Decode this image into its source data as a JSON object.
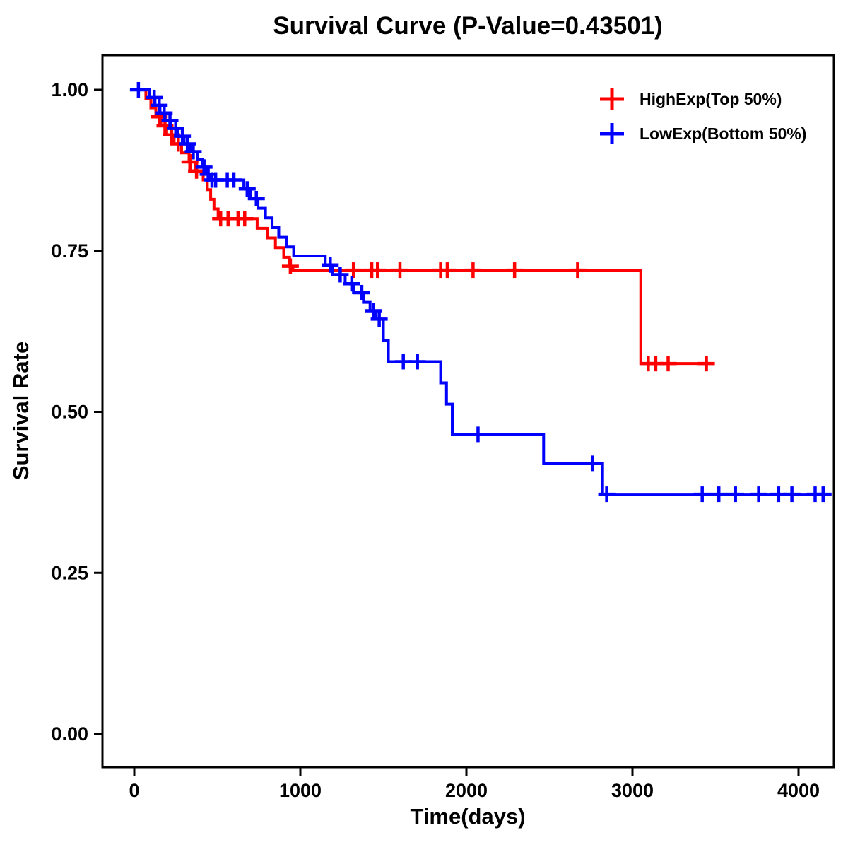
{
  "chart_data": {
    "type": "line",
    "subtype": "kaplan-meier-step",
    "title": "Survival Curve (P-Value=0.43501)",
    "xlabel": "Time(days)",
    "ylabel": "Survival Rate",
    "xlim": [
      0,
      4150
    ],
    "ylim": [
      0.0,
      1.0
    ],
    "x_ticks": [
      0,
      1000,
      2000,
      3000,
      4000
    ],
    "x_tick_labels": [
      "0",
      "1000",
      "2000",
      "3000",
      "4000"
    ],
    "y_ticks": [
      0.0,
      0.25,
      0.5,
      0.75,
      1.0
    ],
    "y_tick_labels": [
      "0.00",
      "0.25",
      "0.50",
      "0.75",
      "1.00"
    ],
    "grid": false,
    "legend_position": "top-right",
    "series": [
      {
        "name": "HighExp(Top 50%)",
        "color": "#FF0000",
        "steps": [
          [
            0,
            1.0
          ],
          [
            70,
            0.986
          ],
          [
            100,
            0.972
          ],
          [
            130,
            0.958
          ],
          [
            160,
            0.944
          ],
          [
            195,
            0.93
          ],
          [
            240,
            0.916
          ],
          [
            285,
            0.902
          ],
          [
            330,
            0.888
          ],
          [
            370,
            0.874
          ],
          [
            415,
            0.86
          ],
          [
            440,
            0.845
          ],
          [
            460,
            0.83
          ],
          [
            480,
            0.815
          ],
          [
            505,
            0.8
          ],
          [
            740,
            0.785
          ],
          [
            800,
            0.77
          ],
          [
            850,
            0.755
          ],
          [
            900,
            0.74
          ],
          [
            935,
            0.726
          ],
          [
            955,
            0.72
          ],
          [
            3050,
            0.575
          ]
        ],
        "end_time": 3450,
        "censor_times": [
          150,
          185,
          225,
          265,
          335,
          375,
          520,
          565,
          625,
          665,
          940,
          1320,
          1430,
          1465,
          1600,
          1845,
          1885,
          2040,
          2290,
          2670,
          3095,
          3140,
          3215,
          3445
        ]
      },
      {
        "name": "LowExp(Bottom 50%)",
        "color": "#0000FF",
        "steps": [
          [
            0,
            1.0
          ],
          [
            90,
            0.988
          ],
          [
            125,
            0.976
          ],
          [
            155,
            0.964
          ],
          [
            185,
            0.952
          ],
          [
            220,
            0.94
          ],
          [
            260,
            0.928
          ],
          [
            300,
            0.916
          ],
          [
            340,
            0.904
          ],
          [
            380,
            0.892
          ],
          [
            410,
            0.88
          ],
          [
            435,
            0.869
          ],
          [
            455,
            0.86
          ],
          [
            660,
            0.846
          ],
          [
            700,
            0.831
          ],
          [
            745,
            0.816
          ],
          [
            790,
            0.801
          ],
          [
            830,
            0.786
          ],
          [
            870,
            0.771
          ],
          [
            915,
            0.756
          ],
          [
            960,
            0.742
          ],
          [
            1150,
            0.728
          ],
          [
            1195,
            0.713
          ],
          [
            1270,
            0.699
          ],
          [
            1320,
            0.685
          ],
          [
            1380,
            0.67
          ],
          [
            1420,
            0.657
          ],
          [
            1455,
            0.644
          ],
          [
            1500,
            0.611
          ],
          [
            1530,
            0.578
          ],
          [
            1845,
            0.545
          ],
          [
            1880,
            0.512
          ],
          [
            1915,
            0.465
          ],
          [
            2465,
            0.42
          ],
          [
            2820,
            0.372
          ]
        ],
        "end_time": 4150,
        "censor_times": [
          25,
          120,
          150,
          180,
          215,
          250,
          290,
          320,
          355,
          420,
          445,
          468,
          490,
          560,
          600,
          680,
          735,
          1180,
          1240,
          1310,
          1370,
          1440,
          1475,
          1620,
          1705,
          2070,
          2760,
          2845,
          3420,
          3520,
          3620,
          3760,
          3880,
          3960,
          4100,
          4148
        ]
      }
    ]
  }
}
